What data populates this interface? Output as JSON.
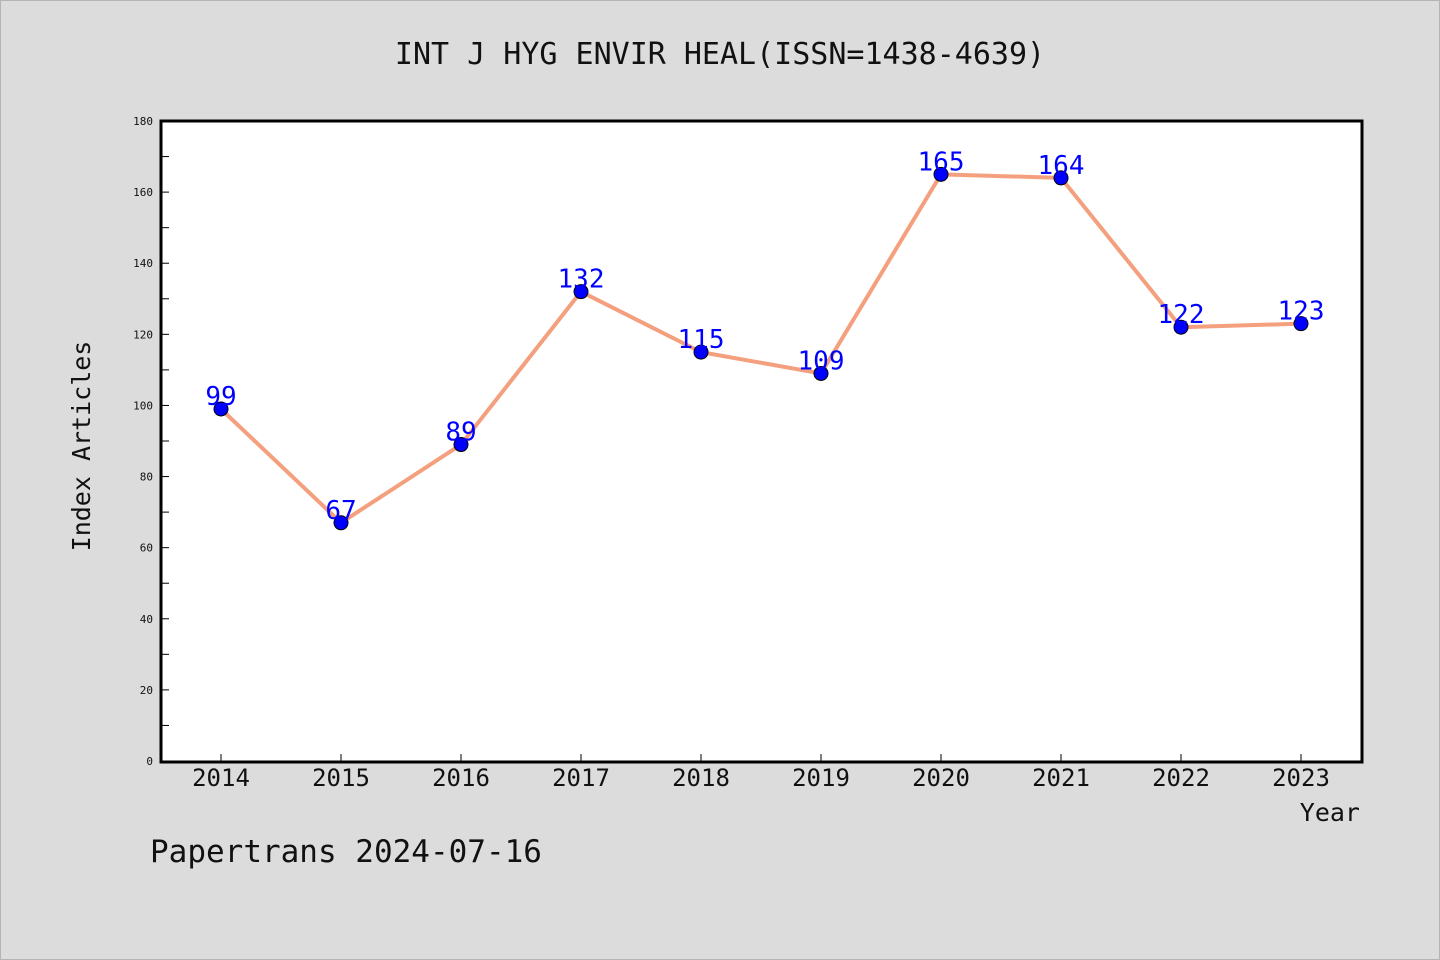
{
  "chart_data": {
    "type": "line",
    "title": "INT J HYG ENVIR HEAL(ISSN=1438-4639)",
    "xlabel": "Year",
    "ylabel": "Index Articles",
    "categories": [
      "2014",
      "2015",
      "2016",
      "2017",
      "2018",
      "2019",
      "2020",
      "2021",
      "2022",
      "2023"
    ],
    "values": [
      99,
      67,
      89,
      132,
      115,
      109,
      165,
      164,
      122,
      123
    ],
    "ylim": [
      0,
      180
    ],
    "y_ticks": [
      0,
      20,
      40,
      60,
      80,
      100,
      120,
      140,
      160,
      180
    ],
    "grid": false,
    "data_labels": true,
    "colors": {
      "line": "#f4a07e",
      "marker": "#0000ff",
      "data_label": "#0000ff",
      "background": "#dcdcdc",
      "plot_background": "#ffffff"
    }
  },
  "footer": {
    "watermark": "Papertrans 2024-07-16"
  }
}
